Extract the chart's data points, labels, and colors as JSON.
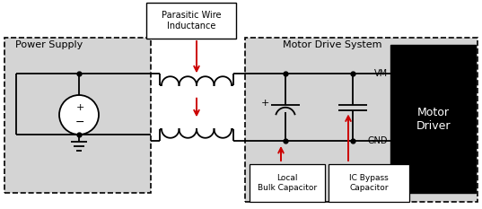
{
  "white": "#ffffff",
  "black": "#000000",
  "red": "#cc0000",
  "gray_box": "#d4d4d4",
  "power_supply_label": "Power Supply",
  "motor_drive_label": "Motor Drive System",
  "parasitic_label": "Parasitic Wire\nInductance",
  "local_cap_label": "Local\nBulk Capacitor",
  "ic_bypass_label": "IC Bypass\nCapacitor",
  "motor_driver_label": "Motor\nDriver",
  "vm_label": "VM",
  "gnd_label": "GND"
}
